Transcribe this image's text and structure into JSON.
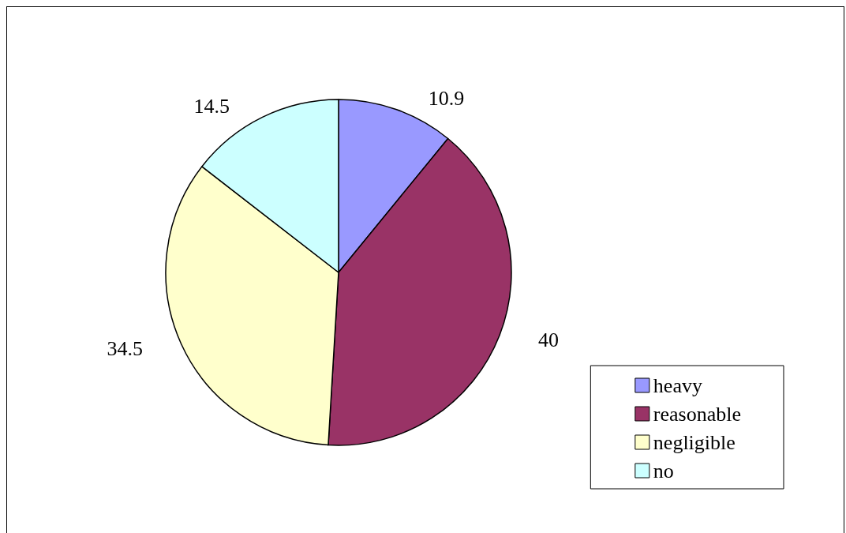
{
  "chart_data": {
    "type": "pie",
    "categories": [
      "heavy",
      "reasonable",
      "negligible",
      "no"
    ],
    "values": [
      10.9,
      40,
      34.5,
      14.5
    ],
    "colors": [
      "#9999ff",
      "#993366",
      "#ffffcc",
      "#ccffff"
    ],
    "data_labels": true,
    "legend": "bottom right"
  }
}
